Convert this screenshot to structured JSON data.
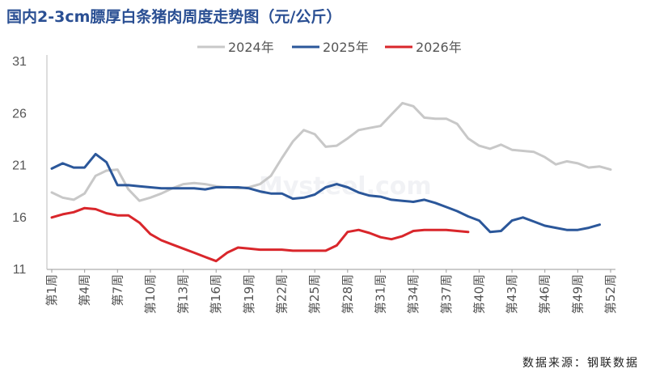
{
  "title": "国内2-3cm膘厚白条猪肉周度走势图（元/公斤）",
  "source": "数据来源：钢联数据",
  "watermark": "Mysteel.com",
  "colors": {
    "s2024": "#c8c8c8",
    "s2025": "#2b579a",
    "s2026": "#d9262b"
  },
  "chart_data": {
    "type": "line",
    "title": "国内2-3cm膘厚白条猪肉周度走势图（元/公斤）",
    "ylim": [
      11,
      31
    ],
    "yticks": [
      11,
      16,
      21,
      26,
      31
    ],
    "x_count": 52,
    "x_tick_labels": [
      {
        "i": 1,
        "label": "第1周"
      },
      {
        "i": 4,
        "label": "第4周"
      },
      {
        "i": 7,
        "label": "第7周"
      },
      {
        "i": 10,
        "label": "第10周"
      },
      {
        "i": 13,
        "label": "第13周"
      },
      {
        "i": 16,
        "label": "第16周"
      },
      {
        "i": 19,
        "label": "第19周"
      },
      {
        "i": 22,
        "label": "第22周"
      },
      {
        "i": 25,
        "label": "第25周"
      },
      {
        "i": 28,
        "label": "第28周"
      },
      {
        "i": 31,
        "label": "第31周"
      },
      {
        "i": 34,
        "label": "第34周"
      },
      {
        "i": 37,
        "label": "第37周"
      },
      {
        "i": 40,
        "label": "第40周"
      },
      {
        "i": 43,
        "label": "第43周"
      },
      {
        "i": 46,
        "label": "第46周"
      },
      {
        "i": 49,
        "label": "第49周"
      },
      {
        "i": 52,
        "label": "第52周"
      }
    ],
    "legend_position": "top",
    "series": [
      {
        "name": "2024年",
        "color": "#c8c8c8",
        "values": [
          18.4,
          17.9,
          17.7,
          18.3,
          20.0,
          20.5,
          20.6,
          18.7,
          17.6,
          17.9,
          18.3,
          18.8,
          19.2,
          19.3,
          19.2,
          19.0,
          18.9,
          18.8,
          18.9,
          19.2,
          20.0,
          21.7,
          23.3,
          24.4,
          24.0,
          22.8,
          22.9,
          23.6,
          24.4,
          24.6,
          24.8,
          25.9,
          27.0,
          26.7,
          25.6,
          25.5,
          25.5,
          25.0,
          23.6,
          22.9,
          22.6,
          23.0,
          22.5,
          22.4,
          22.3,
          21.8,
          21.1,
          21.4,
          21.2,
          20.8,
          20.9,
          20.6
        ]
      },
      {
        "name": "2025年",
        "color": "#2b579a",
        "values": [
          20.7,
          21.2,
          20.8,
          20.8,
          22.1,
          21.3,
          19.1,
          19.1,
          19.0,
          18.9,
          18.8,
          18.8,
          18.8,
          18.8,
          18.7,
          18.9,
          18.9,
          18.9,
          18.8,
          18.5,
          18.3,
          18.3,
          17.8,
          17.9,
          18.2,
          18.9,
          19.2,
          18.9,
          18.4,
          18.1,
          18.0,
          17.7,
          17.6,
          17.5,
          17.7,
          17.4,
          17.0,
          16.6,
          16.1,
          15.7,
          14.6,
          14.7,
          15.7,
          16.0,
          15.6,
          15.2,
          15.0,
          14.8,
          14.8,
          15.0,
          15.3
        ]
      },
      {
        "name": "2026年",
        "color": "#d9262b",
        "values": [
          16.0,
          16.3,
          16.5,
          16.9,
          16.8,
          16.4,
          16.2,
          16.2,
          15.5,
          14.4,
          13.8,
          13.4,
          13.0,
          12.6,
          12.2,
          11.8,
          12.6,
          13.1,
          13.0,
          12.9,
          12.9,
          12.9,
          12.8,
          12.8,
          12.8,
          12.8,
          13.3,
          14.6,
          14.8,
          14.5,
          14.1,
          13.9,
          14.2,
          14.7,
          14.8,
          14.8,
          14.8,
          14.7,
          14.6
        ]
      }
    ]
  }
}
